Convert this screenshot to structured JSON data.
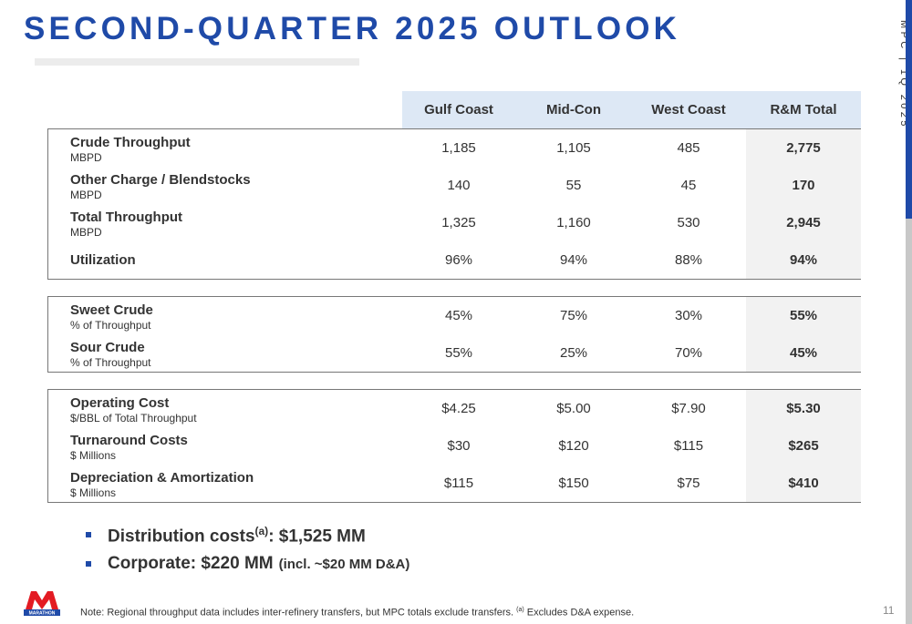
{
  "title": "SECOND-QUARTER 2025 OUTLOOK",
  "side_label": "MPC | 1Q 2025",
  "logo_text": "MARATHON",
  "table": {
    "columns": [
      "Gulf Coast",
      "Mid-Con",
      "West Coast",
      "R&M Total"
    ],
    "groups": [
      {
        "rows": [
          {
            "label": "Crude Throughput",
            "sublabel": "MBPD",
            "values": [
              "1,185",
              "1,105",
              "485",
              "2,775"
            ]
          },
          {
            "label": "Other Charge / Blendstocks",
            "sublabel": "MBPD",
            "values": [
              "140",
              "55",
              "45",
              "170"
            ]
          },
          {
            "label": "Total Throughput",
            "sublabel": "MBPD",
            "values": [
              "1,325",
              "1,160",
              "530",
              "2,945"
            ]
          },
          {
            "label": "Utilization",
            "values": [
              "96%",
              "94%",
              "88%",
              "94%"
            ]
          }
        ]
      },
      {
        "rows": [
          {
            "label": "Sweet Crude",
            "sublabel": "% of Throughput",
            "values": [
              "45%",
              "75%",
              "30%",
              "55%"
            ]
          },
          {
            "label": "Sour Crude",
            "sublabel": "% of Throughput",
            "values": [
              "55%",
              "25%",
              "70%",
              "45%"
            ]
          }
        ]
      },
      {
        "rows": [
          {
            "label": "Operating Cost",
            "sublabel": "$/BBL of Total Throughput",
            "values": [
              "$4.25",
              "$5.00",
              "$7.90",
              "$5.30"
            ]
          },
          {
            "label": "Turnaround Costs",
            "sublabel": "$ Millions",
            "values": [
              "$30",
              "$120",
              "$115",
              "$265"
            ]
          },
          {
            "label": "Depreciation & Amortization",
            "sublabel": "$ Millions",
            "values": [
              "$115",
              "$150",
              "$75",
              "$410"
            ]
          }
        ]
      }
    ]
  },
  "bullets": [
    {
      "text": "Distribution costs",
      "sup": "(a)",
      "tail": ": $1,525 MM"
    },
    {
      "text": "Corporate: $220 MM",
      "small": "(incl. ~$20 MM D&A)"
    }
  ],
  "note": {
    "text": "Note: Regional throughput data includes inter-refinery transfers, but MPC totals exclude transfers.",
    "sup": "(a)",
    "tail": "Excludes D&A expense."
  },
  "page_number": "11"
}
